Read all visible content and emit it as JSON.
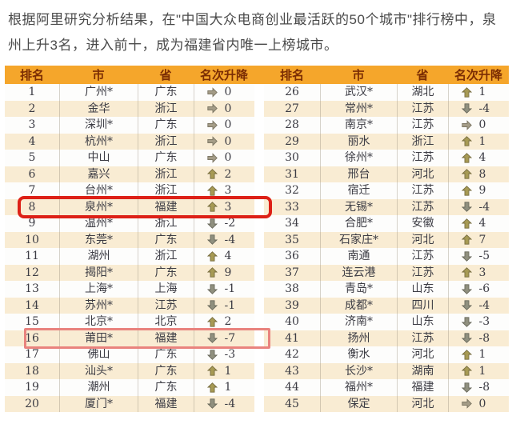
{
  "intro": {
    "text": "根据阿里研究分析结果，在\"中国大众电商创业最活跃的50个城市\"排行榜中，泉州上升3名，进入前十，成为福建省内唯一上榜城市。"
  },
  "table": {
    "headers": [
      "排名",
      "市",
      "省",
      "名次升降"
    ],
    "left_rows": [
      {
        "rank": "1",
        "city": "广州*",
        "province": "广东",
        "dir": "flat",
        "change": "0"
      },
      {
        "rank": "2",
        "city": "金华",
        "province": "浙江",
        "dir": "flat",
        "change": "0"
      },
      {
        "rank": "3",
        "city": "深圳*",
        "province": "广东",
        "dir": "flat",
        "change": "0"
      },
      {
        "rank": "4",
        "city": "杭州*",
        "province": "浙江",
        "dir": "flat",
        "change": "0"
      },
      {
        "rank": "5",
        "city": "中山",
        "province": "广东",
        "dir": "flat",
        "change": "0"
      },
      {
        "rank": "6",
        "city": "嘉兴",
        "province": "浙江",
        "dir": "up",
        "change": "2"
      },
      {
        "rank": "7",
        "city": "台州*",
        "province": "浙江",
        "dir": "up",
        "change": "3"
      },
      {
        "rank": "8",
        "city": "泉州*",
        "province": "福建",
        "dir": "up",
        "change": "3",
        "highlight": "strong"
      },
      {
        "rank": "9",
        "city": "温州*",
        "province": "浙江",
        "dir": "down",
        "change": "-2"
      },
      {
        "rank": "10",
        "city": "东莞*",
        "province": "广东",
        "dir": "down",
        "change": "-4"
      },
      {
        "rank": "11",
        "city": "湖州",
        "province": "浙江",
        "dir": "up",
        "change": "4"
      },
      {
        "rank": "12",
        "city": "揭阳*",
        "province": "广东",
        "dir": "up",
        "change": "9"
      },
      {
        "rank": "13",
        "city": "上海*",
        "province": "上海",
        "dir": "down",
        "change": "-1"
      },
      {
        "rank": "14",
        "city": "苏州*",
        "province": "江苏",
        "dir": "down",
        "change": "-1"
      },
      {
        "rank": "15",
        "city": "北京*",
        "province": "北京",
        "dir": "up",
        "change": "2"
      },
      {
        "rank": "16",
        "city": "莆田*",
        "province": "福建",
        "dir": "down",
        "change": "-7",
        "highlight": "light"
      },
      {
        "rank": "17",
        "city": "佛山",
        "province": "广东",
        "dir": "down",
        "change": "-3"
      },
      {
        "rank": "18",
        "city": "汕头*",
        "province": "广东",
        "dir": "up",
        "change": "1"
      },
      {
        "rank": "19",
        "city": "潮州",
        "province": "广东",
        "dir": "up",
        "change": "1"
      },
      {
        "rank": "20",
        "city": "厦门*",
        "province": "福建",
        "dir": "down",
        "change": "-4"
      }
    ],
    "right_rows": [
      {
        "rank": "26",
        "city": "武汉*",
        "province": "湖北",
        "dir": "up",
        "change": "1"
      },
      {
        "rank": "27",
        "city": "常州*",
        "province": "江苏",
        "dir": "down",
        "change": "-4"
      },
      {
        "rank": "28",
        "city": "南京*",
        "province": "江苏",
        "dir": "flat",
        "change": "0"
      },
      {
        "rank": "29",
        "city": "丽水",
        "province": "浙江",
        "dir": "up",
        "change": "1"
      },
      {
        "rank": "30",
        "city": "徐州*",
        "province": "江苏",
        "dir": "up",
        "change": "4"
      },
      {
        "rank": "31",
        "city": "邢台",
        "province": "河北",
        "dir": "up",
        "change": "8"
      },
      {
        "rank": "32",
        "city": "宿迁",
        "province": "江苏",
        "dir": "up",
        "change": "9"
      },
      {
        "rank": "33",
        "city": "无锡*",
        "province": "江苏",
        "dir": "down",
        "change": "-4"
      },
      {
        "rank": "34",
        "city": "合肥*",
        "province": "安徽",
        "dir": "up",
        "change": "4"
      },
      {
        "rank": "35",
        "city": "石家庄*",
        "province": "河北",
        "dir": "up",
        "change": "7"
      },
      {
        "rank": "36",
        "city": "南通",
        "province": "江苏",
        "dir": "down",
        "change": "-5"
      },
      {
        "rank": "37",
        "city": "连云港",
        "province": "江苏",
        "dir": "up",
        "change": "3"
      },
      {
        "rank": "38",
        "city": "青岛*",
        "province": "山东",
        "dir": "down",
        "change": "-6"
      },
      {
        "rank": "39",
        "city": "成都*",
        "province": "四川",
        "dir": "down",
        "change": "-4"
      },
      {
        "rank": "40",
        "city": "济南*",
        "province": "山东",
        "dir": "down",
        "change": "-3"
      },
      {
        "rank": "41",
        "city": "扬州",
        "province": "江苏",
        "dir": "down",
        "change": "-8"
      },
      {
        "rank": "42",
        "city": "衡水",
        "province": "河北",
        "dir": "up",
        "change": "1"
      },
      {
        "rank": "43",
        "city": "长沙*",
        "province": "湖南",
        "dir": "up",
        "change": "1"
      },
      {
        "rank": "44",
        "city": "福州*",
        "province": "福建",
        "dir": "down",
        "change": "-8"
      },
      {
        "rank": "45",
        "city": "保定",
        "province": "河北",
        "dir": "flat",
        "change": "0"
      }
    ]
  },
  "colors": {
    "header_bg": "#f5a62b",
    "header_text": "#7b2d04",
    "stripe_bg": "#f9ecd3",
    "body_text": "#3c3c44",
    "highlight_strong": "#dd2016",
    "highlight_light": "#e9837e",
    "arrow_up_fill": "#a79a54",
    "arrow_up_stroke": "#766c3e",
    "arrow_down_fill": "#90907f",
    "arrow_down_stroke": "#67675a",
    "arrow_flat_fill": "#a49c87",
    "arrow_flat_stroke": "#7a7462"
  }
}
